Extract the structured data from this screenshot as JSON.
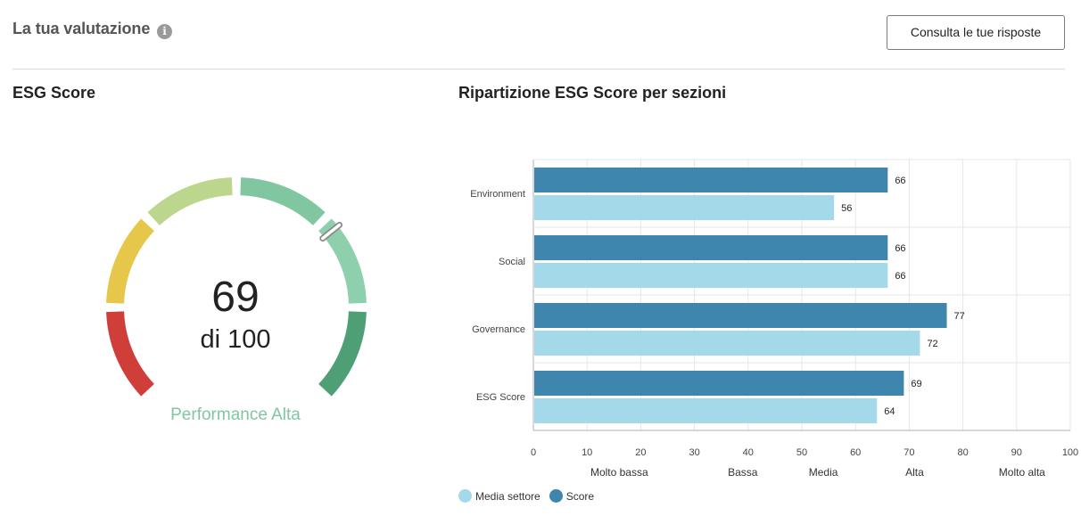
{
  "header": {
    "title": "La tua valutazione",
    "info_icon": "info-icon",
    "consult_button_label": "Consulta le tue risposte"
  },
  "gauge": {
    "title": "ESG Score",
    "score": "69",
    "out_of": "di 100",
    "performance_label": "Performance Alta",
    "value": 69,
    "max": 100,
    "segment_colors": [
      "#cf3e38",
      "#e6c74a",
      "#bcd68e",
      "#7fc6a1",
      "#8ed0ad",
      "#4f9f76"
    ]
  },
  "chart_data": {
    "type": "bar",
    "orientation": "horizontal",
    "title": "Ripartizione ESG Score per sezioni",
    "categories": [
      "Environment",
      "Social",
      "Governance",
      "ESG Score"
    ],
    "series": [
      {
        "name": "Score",
        "color": "#3f86ae",
        "values": [
          66,
          66,
          77,
          69
        ]
      },
      {
        "name": "Media settore",
        "color": "#a3d9e8",
        "values": [
          56,
          66,
          72,
          64
        ]
      }
    ],
    "xlim": [
      0,
      100
    ],
    "xticks": [
      0,
      10,
      20,
      30,
      40,
      50,
      60,
      70,
      80,
      90,
      100
    ],
    "band_labels": [
      {
        "label": "Molto bassa",
        "at": 16
      },
      {
        "label": "Bassa",
        "at": 39
      },
      {
        "label": "Media",
        "at": 54
      },
      {
        "label": "Alta",
        "at": 71
      },
      {
        "label": "Molto alta",
        "at": 91
      }
    ],
    "grid": true,
    "legend_position": "bottom-left"
  }
}
